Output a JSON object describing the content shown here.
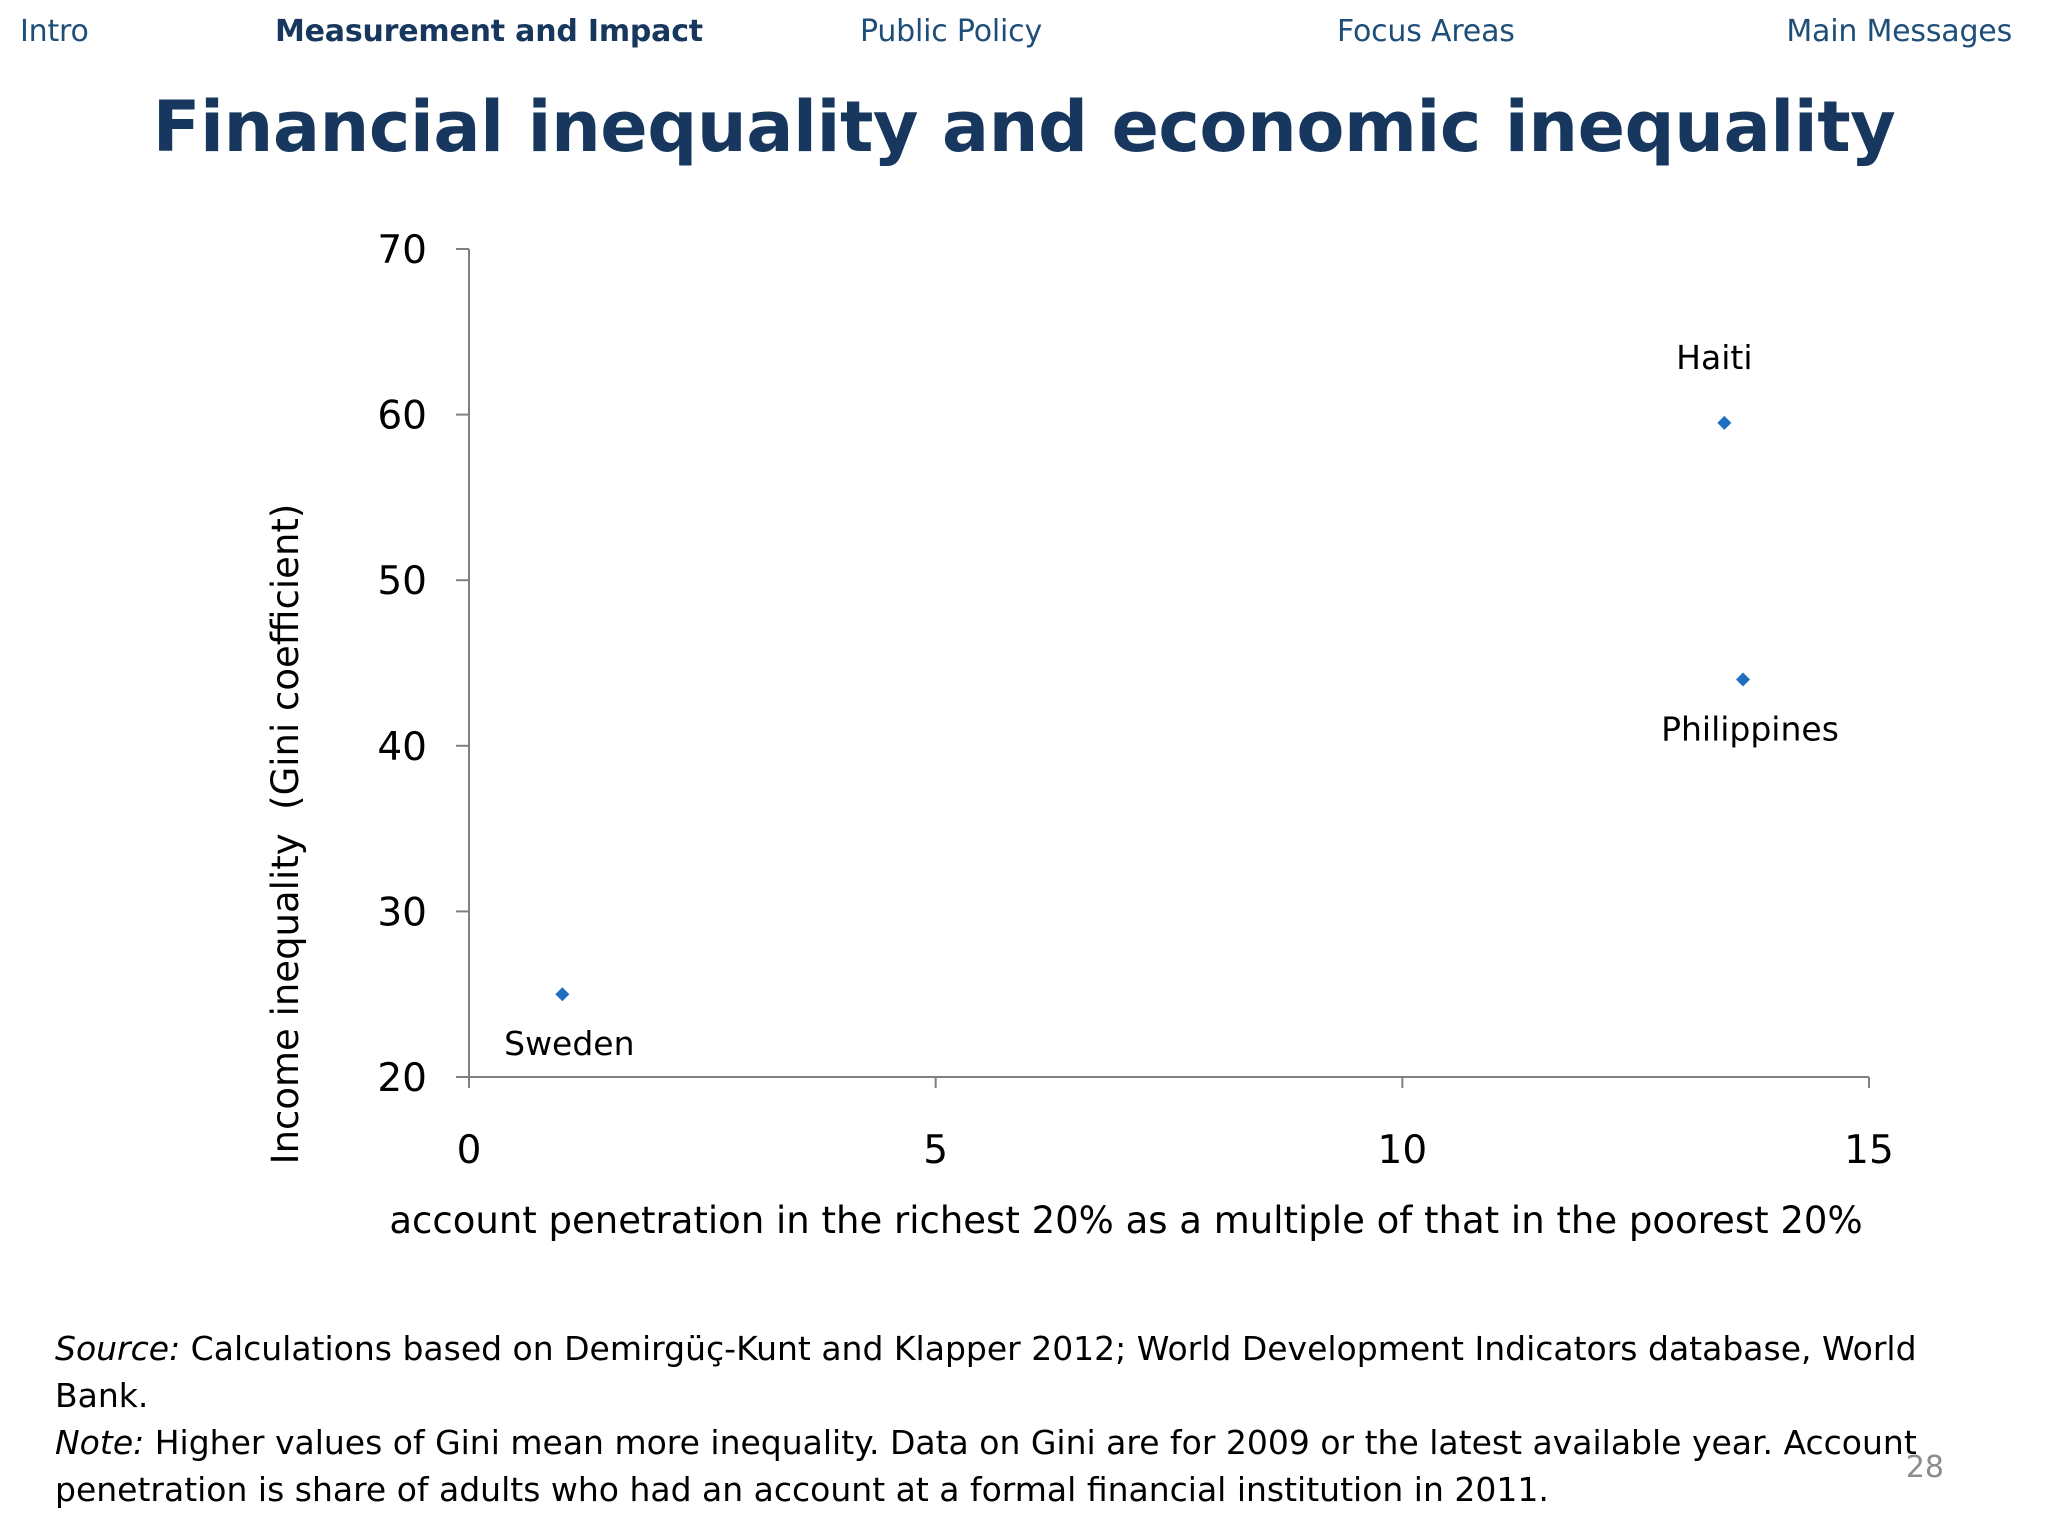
{
  "nav": {
    "items": [
      {
        "label": "Intro",
        "active": false
      },
      {
        "label": "Measurement and Impact",
        "active": true
      },
      {
        "label": "Public Policy",
        "active": false
      },
      {
        "label": "Focus Areas",
        "active": false
      },
      {
        "label": "Main Messages",
        "active": false
      }
    ]
  },
  "slide": {
    "title": "Financial inequality and economic inequality",
    "page_number": "28"
  },
  "footnote": {
    "source_label": "Source:",
    "source_text": " Calculations based on Demirgüç-Kunt and Klapper 2012; World Development Indicators database, World Bank.",
    "note_label": "Note:",
    "note_text": " Higher values of Gini mean more inequality. Data on Gini are for 2009 or the latest available year. Account penetration is share of adults who had an account at a formal financial institution in 2011."
  },
  "colors": {
    "nav": "#1f4e79",
    "title": "#17375e",
    "marker": "#1f6fc0",
    "axis": "#808080",
    "page_number": "#8c8c8c"
  },
  "chart_data": {
    "type": "scatter",
    "title": "",
    "xlabel": "account penetration in the richest 20% as a multiple of that in the poorest 20%",
    "ylabel": "Income inequality  (Gini coefficient)",
    "xlim": [
      0,
      15
    ],
    "ylim": [
      20,
      70
    ],
    "xticks": [
      0,
      5,
      10,
      15
    ],
    "yticks": [
      20,
      30,
      40,
      50,
      60,
      70
    ],
    "grid": false,
    "marker": "diamond",
    "points": [
      {
        "label": "Sweden",
        "x": 1.0,
        "y": 25,
        "label_position": "below"
      },
      {
        "label": "Haiti",
        "x": 13.45,
        "y": 59.5,
        "label_position": "above"
      },
      {
        "label": "Philippines",
        "x": 13.65,
        "y": 44,
        "label_position": "below"
      }
    ]
  }
}
